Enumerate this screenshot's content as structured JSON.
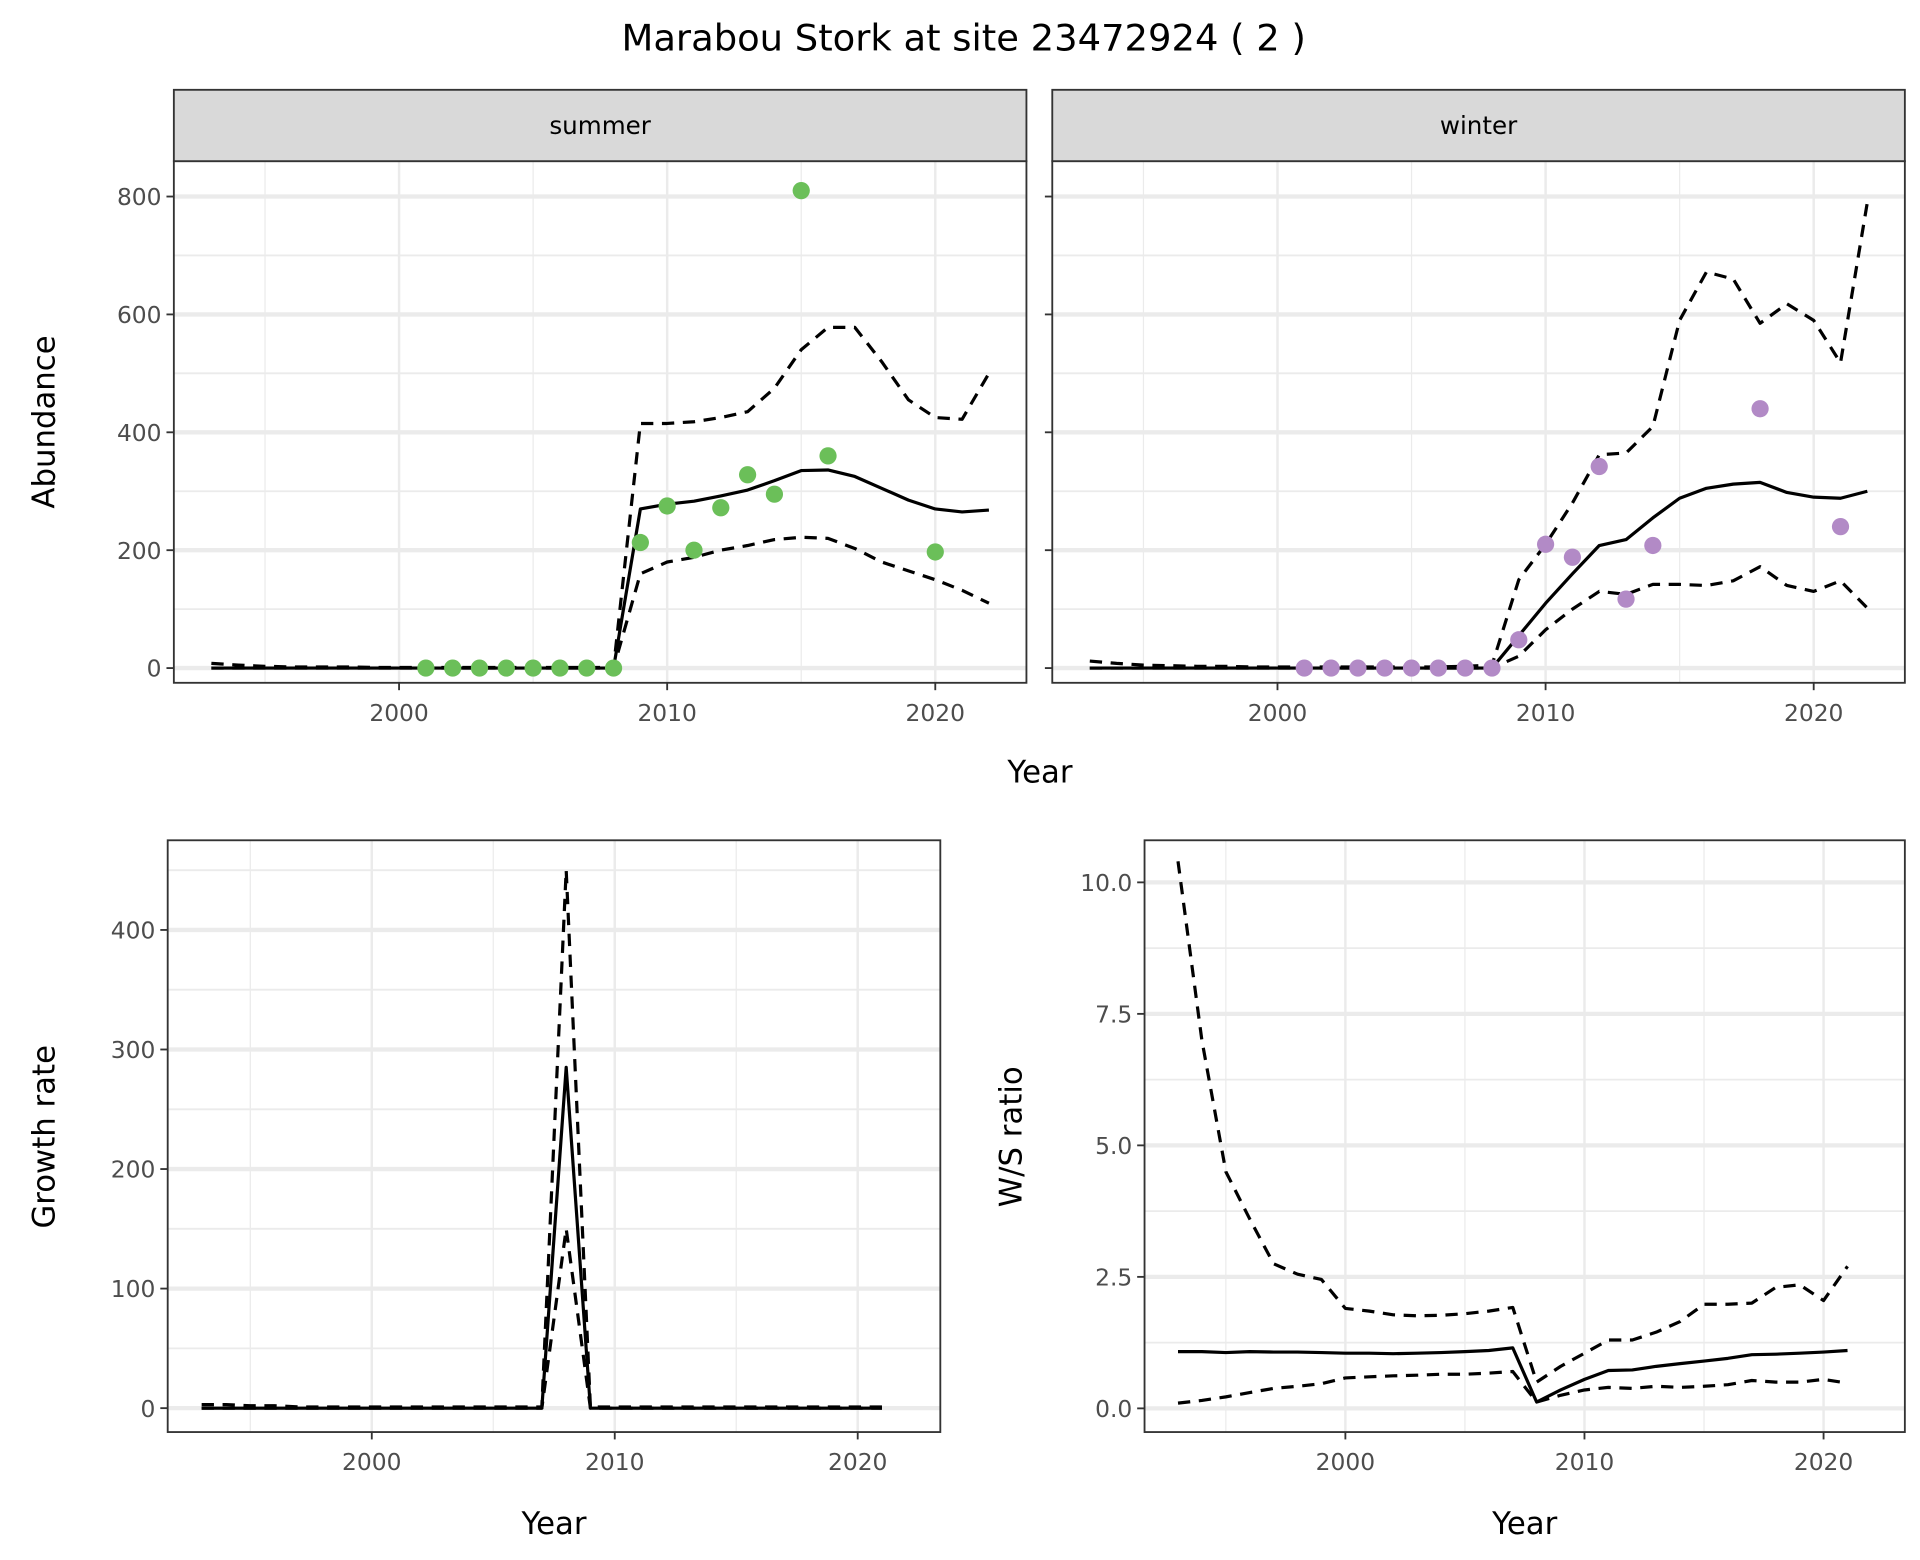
{
  "chart_data": [
    {
      "type": "line",
      "title": "Marabou Stork at site 23472924 ( 2 )",
      "facet": "summer",
      "xlabel": "Year",
      "ylabel": "Abundance",
      "xlim": [
        1991.6,
        2023.4
      ],
      "ylim": [
        -25,
        860
      ],
      "xticks": [
        2000,
        2010,
        2020
      ],
      "yticks": [
        0,
        200,
        400,
        600,
        800
      ],
      "point_color": "#6bbf59",
      "points": {
        "x": [
          2001,
          2002,
          2003,
          2004,
          2005,
          2006,
          2007,
          2008,
          2009,
          2010,
          2011,
          2012,
          2013,
          2014,
          2015,
          2016,
          2020
        ],
        "y": [
          0,
          0,
          0,
          0,
          0,
          0,
          0,
          0,
          213,
          275,
          200,
          272,
          328,
          295,
          810,
          360,
          197
        ]
      },
      "x": [
        1993,
        1994,
        1995,
        1996,
        1997,
        1998,
        1999,
        2000,
        2001,
        2002,
        2003,
        2004,
        2005,
        2006,
        2007,
        2008,
        2009,
        2010,
        2011,
        2012,
        2013,
        2014,
        2015,
        2016,
        2017,
        2018,
        2019,
        2020,
        2021,
        2022
      ],
      "series": [
        {
          "name": "mean",
          "style": "solid",
          "values": [
            0,
            0,
            0,
            0,
            0,
            0,
            0,
            0,
            0,
            0,
            0,
            0,
            0,
            0,
            0,
            0,
            270,
            278,
            283,
            292,
            302,
            318,
            335,
            336,
            325,
            305,
            285,
            270,
            265,
            268
          ]
        },
        {
          "name": "upper",
          "style": "dashed",
          "values": [
            8,
            5,
            3,
            2,
            2,
            2,
            1,
            1,
            1,
            1,
            1,
            1,
            1,
            1,
            1,
            1,
            415,
            415,
            418,
            425,
            435,
            475,
            540,
            578,
            578,
            520,
            455,
            425,
            422,
            500
          ]
        },
        {
          "name": "lower",
          "style": "dashed",
          "values": [
            0,
            0,
            0,
            0,
            0,
            0,
            0,
            0,
            0,
            0,
            0,
            0,
            0,
            0,
            0,
            0,
            160,
            180,
            188,
            200,
            208,
            218,
            222,
            220,
            203,
            180,
            165,
            150,
            132,
            110
          ]
        }
      ]
    },
    {
      "type": "line",
      "facet": "winter",
      "xlabel": "Year",
      "ylabel": "Abundance",
      "xlim": [
        1991.6,
        2023.4
      ],
      "ylim": [
        -25,
        860
      ],
      "xticks": [
        2000,
        2010,
        2020
      ],
      "yticks": [
        0,
        200,
        400,
        600,
        800
      ],
      "point_color": "#b28ac6",
      "points": {
        "x": [
          2001,
          2002,
          2003,
          2004,
          2005,
          2006,
          2007,
          2008,
          2009,
          2010,
          2011,
          2012,
          2013,
          2014,
          2018,
          2021
        ],
        "y": [
          0,
          0,
          0,
          0,
          0,
          0,
          0,
          0,
          48,
          210,
          188,
          342,
          117,
          208,
          440,
          240
        ]
      },
      "x": [
        1993,
        1994,
        1995,
        1996,
        1997,
        1998,
        1999,
        2000,
        2001,
        2002,
        2003,
        2004,
        2005,
        2006,
        2007,
        2008,
        2009,
        2010,
        2011,
        2012,
        2013,
        2014,
        2015,
        2016,
        2017,
        2018,
        2019,
        2020,
        2021,
        2022
      ],
      "series": [
        {
          "name": "mean",
          "style": "solid",
          "values": [
            0,
            0,
            0,
            0,
            0,
            0,
            0,
            0,
            0,
            0,
            0,
            0,
            0,
            0,
            0,
            0,
            55,
            110,
            160,
            208,
            218,
            255,
            288,
            305,
            312,
            315,
            298,
            290,
            288,
            300
          ]
        },
        {
          "name": "upper",
          "style": "dashed",
          "values": [
            12,
            8,
            5,
            4,
            3,
            3,
            2,
            2,
            2,
            2,
            2,
            2,
            2,
            2,
            3,
            5,
            150,
            210,
            280,
            362,
            365,
            410,
            590,
            672,
            660,
            585,
            618,
            590,
            518,
            790
          ]
        },
        {
          "name": "lower",
          "style": "dashed",
          "values": [
            0,
            0,
            0,
            0,
            0,
            0,
            0,
            0,
            0,
            0,
            0,
            0,
            0,
            0,
            0,
            0,
            20,
            65,
            100,
            130,
            125,
            142,
            142,
            140,
            148,
            172,
            140,
            130,
            148,
            102
          ]
        }
      ]
    },
    {
      "type": "line",
      "xlabel": "Year",
      "ylabel": "Growth rate",
      "xlim": [
        1991.6,
        2023.4
      ],
      "ylim": [
        -20,
        475
      ],
      "xticks": [
        2000,
        2010,
        2020
      ],
      "yticks": [
        0,
        100,
        200,
        300,
        400
      ],
      "x": [
        1993,
        1994,
        1995,
        1996,
        1997,
        1998,
        1999,
        2000,
        2001,
        2002,
        2003,
        2004,
        2005,
        2006,
        2007,
        2008,
        2009,
        2010,
        2011,
        2012,
        2013,
        2014,
        2015,
        2016,
        2017,
        2018,
        2019,
        2020,
        2021
      ],
      "series": [
        {
          "name": "mean",
          "style": "solid",
          "values": [
            0,
            0,
            0,
            0,
            0,
            0,
            0,
            0,
            0,
            0,
            0,
            0,
            0,
            0,
            0,
            285,
            0,
            0,
            0,
            0,
            0,
            0,
            0,
            0,
            0,
            0,
            0,
            0,
            0
          ]
        },
        {
          "name": "upper",
          "style": "dashed",
          "values": [
            3,
            3,
            2,
            2,
            1,
            1,
            1,
            1,
            1,
            1,
            1,
            1,
            1,
            1,
            1,
            450,
            1,
            1,
            1,
            1,
            1,
            1,
            1,
            1,
            1,
            1,
            1,
            1,
            1
          ]
        },
        {
          "name": "lower",
          "style": "dashed",
          "values": [
            0,
            0,
            0,
            0,
            0,
            0,
            0,
            0,
            0,
            0,
            0,
            0,
            0,
            0,
            0,
            150,
            0,
            0,
            0,
            0,
            0,
            0,
            0,
            0,
            0,
            0,
            0,
            0,
            0
          ]
        }
      ]
    },
    {
      "type": "line",
      "xlabel": "Year",
      "ylabel": "W/S ratio",
      "xlim": [
        1991.6,
        2023.4
      ],
      "ylim": [
        -0.45,
        10.8
      ],
      "xticks": [
        2000,
        2010,
        2020
      ],
      "yticks": [
        0.0,
        2.5,
        5.0,
        7.5,
        10.0
      ],
      "ytick_labels": [
        "0.0",
        "2.5",
        "5.0",
        "7.5",
        "10.0"
      ],
      "x": [
        1993,
        1994,
        1995,
        1996,
        1997,
        1998,
        1999,
        2000,
        2001,
        2002,
        2003,
        2004,
        2005,
        2006,
        2007,
        2008,
        2009,
        2010,
        2011,
        2012,
        2013,
        2014,
        2015,
        2016,
        2017,
        2018,
        2019,
        2020,
        2021
      ],
      "series": [
        {
          "name": "mean",
          "style": "solid",
          "values": [
            1.08,
            1.08,
            1.06,
            1.08,
            1.07,
            1.07,
            1.06,
            1.05,
            1.05,
            1.04,
            1.05,
            1.06,
            1.08,
            1.1,
            1.15,
            0.12,
            0.35,
            0.55,
            0.72,
            0.73,
            0.8,
            0.85,
            0.9,
            0.95,
            1.02,
            1.03,
            1.05,
            1.07,
            1.1
          ]
        },
        {
          "name": "upper",
          "style": "dashed",
          "values": [
            10.4,
            7.0,
            4.5,
            3.6,
            2.75,
            2.55,
            2.45,
            1.9,
            1.85,
            1.78,
            1.76,
            1.77,
            1.8,
            1.85,
            1.92,
            0.5,
            0.8,
            1.05,
            1.3,
            1.3,
            1.45,
            1.65,
            1.98,
            1.98,
            2.0,
            2.3,
            2.35,
            2.05,
            2.7
          ]
        },
        {
          "name": "lower",
          "style": "dashed",
          "values": [
            0.1,
            0.15,
            0.22,
            0.3,
            0.38,
            0.42,
            0.47,
            0.58,
            0.6,
            0.62,
            0.63,
            0.65,
            0.65,
            0.67,
            0.7,
            0.12,
            0.25,
            0.35,
            0.4,
            0.38,
            0.42,
            0.4,
            0.42,
            0.45,
            0.53,
            0.5,
            0.5,
            0.55,
            0.48
          ]
        }
      ]
    }
  ]
}
